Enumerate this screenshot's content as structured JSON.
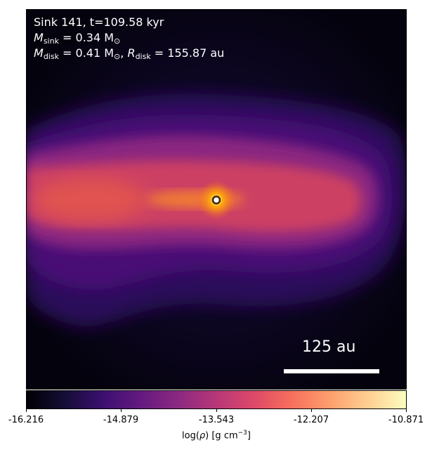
{
  "annotation": {
    "line1": "Sink 141, t=109.58 kyr",
    "mass_sink_symbol": "M",
    "mass_sink_sub": "sink",
    "mass_sink_value": " = 0.34 M",
    "mass_sink_unit_sub": "⊙",
    "mass_disk_symbol": "M",
    "mass_disk_sub": "disk",
    "mass_disk_value": " = 0.41 M",
    "mass_disk_unit_sub": "⊙",
    "radius_disk_symbol": "R",
    "radius_disk_sub": "disk",
    "radius_disk_value": " = 155.87 au",
    "separator": ", "
  },
  "scalebar": {
    "label": "125 au"
  },
  "colorbar": {
    "ticks": [
      "-16.216",
      "-14.879",
      "-13.543",
      "-12.207",
      "-10.871"
    ],
    "label_prefix": "log(",
    "label_rho": "ρ",
    "label_mid": ") [g cm",
    "label_exp": "−3",
    "label_suffix": "]",
    "colormap": "inferno"
  },
  "colors": {
    "background": "#05030f",
    "envelope": "#3b0f70",
    "disk": "#d6455a",
    "core": "#f98e2b",
    "sink_marker": "#ffffff"
  }
}
